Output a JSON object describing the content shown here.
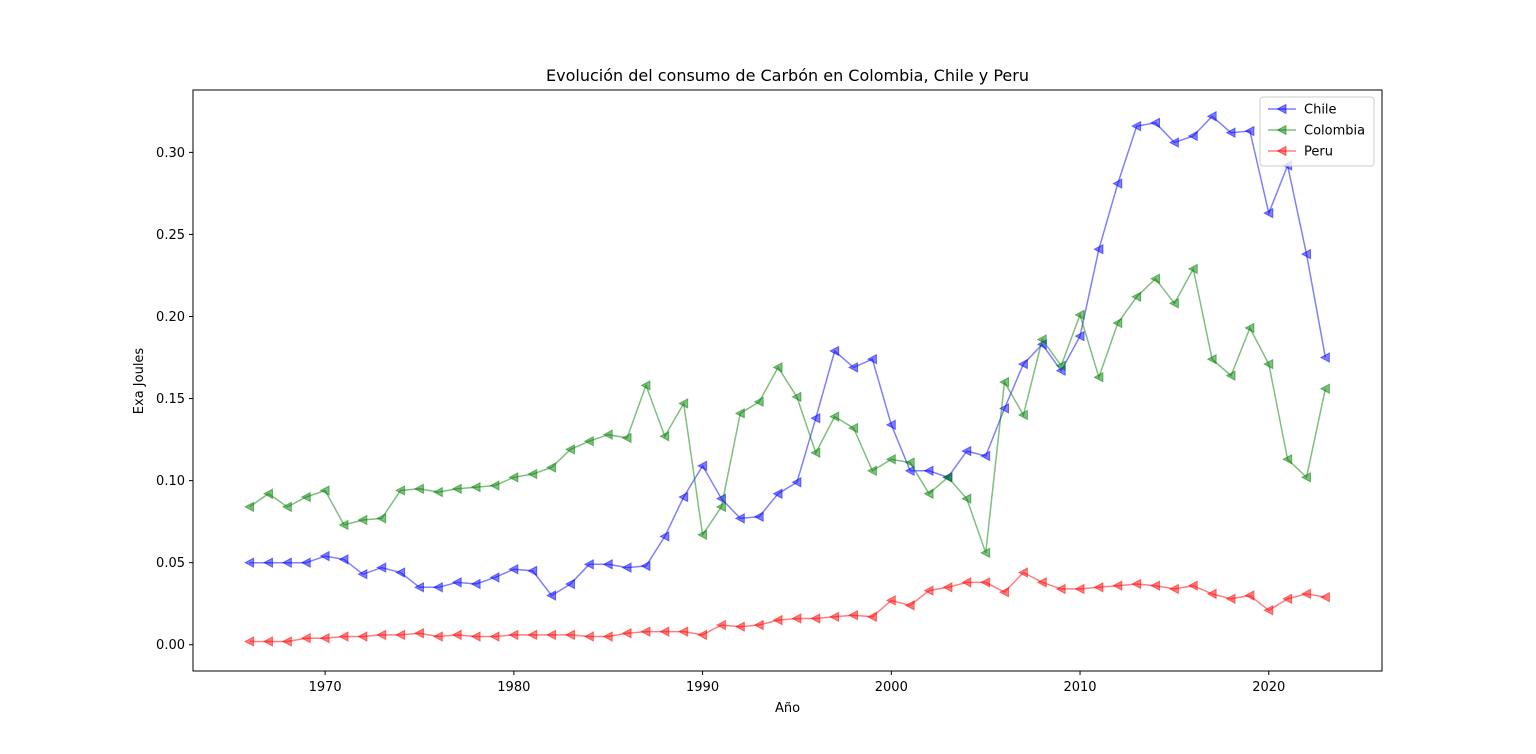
{
  "chart_data": {
    "type": "line",
    "title": "Evolución del consumo de Carbón en Colombia, Chile y Peru",
    "xlabel": "Año",
    "ylabel": "Exa Joules",
    "xlim": [
      1963,
      2026
    ],
    "ylim": [
      -0.016,
      0.338
    ],
    "xticks": [
      1970,
      1980,
      1990,
      2000,
      2010,
      2020
    ],
    "yticks": [
      0.0,
      0.05,
      0.1,
      0.15,
      0.2,
      0.25,
      0.3
    ],
    "ytick_labels": [
      "0.00",
      "0.05",
      "0.10",
      "0.15",
      "0.20",
      "0.25",
      "0.30"
    ],
    "legend_position": "top-right",
    "grid": false,
    "marker": "triangle-left",
    "x": [
      1966,
      1967,
      1968,
      1969,
      1970,
      1971,
      1972,
      1973,
      1974,
      1975,
      1976,
      1977,
      1978,
      1979,
      1980,
      1981,
      1982,
      1983,
      1984,
      1985,
      1986,
      1987,
      1988,
      1989,
      1990,
      1991,
      1992,
      1993,
      1994,
      1995,
      1996,
      1997,
      1998,
      1999,
      2000,
      2001,
      2002,
      2003,
      2004,
      2005,
      2006,
      2007,
      2008,
      2009,
      2010,
      2011,
      2012,
      2013,
      2014,
      2015,
      2016,
      2017,
      2018,
      2019,
      2020,
      2021,
      2022,
      2023
    ],
    "series": [
      {
        "name": "Chile",
        "color": "#0000ff",
        "values": [
          0.05,
          0.05,
          0.05,
          0.05,
          0.054,
          0.052,
          0.043,
          0.047,
          0.044,
          0.035,
          0.035,
          0.038,
          0.037,
          0.041,
          0.046,
          0.045,
          0.03,
          0.037,
          0.049,
          0.049,
          0.047,
          0.048,
          0.066,
          0.09,
          0.109,
          0.089,
          0.077,
          0.078,
          0.092,
          0.099,
          0.138,
          0.179,
          0.169,
          0.174,
          0.134,
          0.106,
          0.106,
          0.102,
          0.118,
          0.115,
          0.144,
          0.171,
          0.183,
          0.167,
          0.188,
          0.241,
          0.281,
          0.316,
          0.318,
          0.306,
          0.31,
          0.322,
          0.312,
          0.313,
          0.263,
          0.292,
          0.238,
          0.175
        ]
      },
      {
        "name": "Colombia",
        "color": "#008000",
        "values": [
          0.084,
          0.092,
          0.084,
          0.09,
          0.094,
          0.073,
          0.076,
          0.077,
          0.094,
          0.095,
          0.093,
          0.095,
          0.096,
          0.097,
          0.102,
          0.104,
          0.108,
          0.119,
          0.124,
          0.128,
          0.126,
          0.158,
          0.127,
          0.147,
          0.067,
          0.084,
          0.141,
          0.148,
          0.169,
          0.151,
          0.117,
          0.139,
          0.132,
          0.106,
          0.113,
          0.111,
          0.092,
          0.102,
          0.089,
          0.056,
          0.16,
          0.14,
          0.186,
          0.17,
          0.201,
          0.163,
          0.196,
          0.212,
          0.223,
          0.208,
          0.229,
          0.174,
          0.164,
          0.193,
          0.171,
          0.113,
          0.102,
          0.156
        ]
      },
      {
        "name": "Peru",
        "color": "#ff0000",
        "values": [
          0.002,
          0.002,
          0.002,
          0.004,
          0.004,
          0.005,
          0.005,
          0.006,
          0.006,
          0.007,
          0.005,
          0.006,
          0.005,
          0.005,
          0.006,
          0.006,
          0.006,
          0.006,
          0.005,
          0.005,
          0.007,
          0.008,
          0.008,
          0.008,
          0.006,
          0.012,
          0.011,
          0.012,
          0.015,
          0.016,
          0.016,
          0.017,
          0.018,
          0.017,
          0.027,
          0.024,
          0.033,
          0.035,
          0.038,
          0.038,
          0.032,
          0.044,
          0.038,
          0.034,
          0.034,
          0.035,
          0.036,
          0.037,
          0.036,
          0.034,
          0.036,
          0.031,
          0.028,
          0.03,
          0.021,
          0.028,
          0.031,
          0.029
        ]
      }
    ]
  }
}
